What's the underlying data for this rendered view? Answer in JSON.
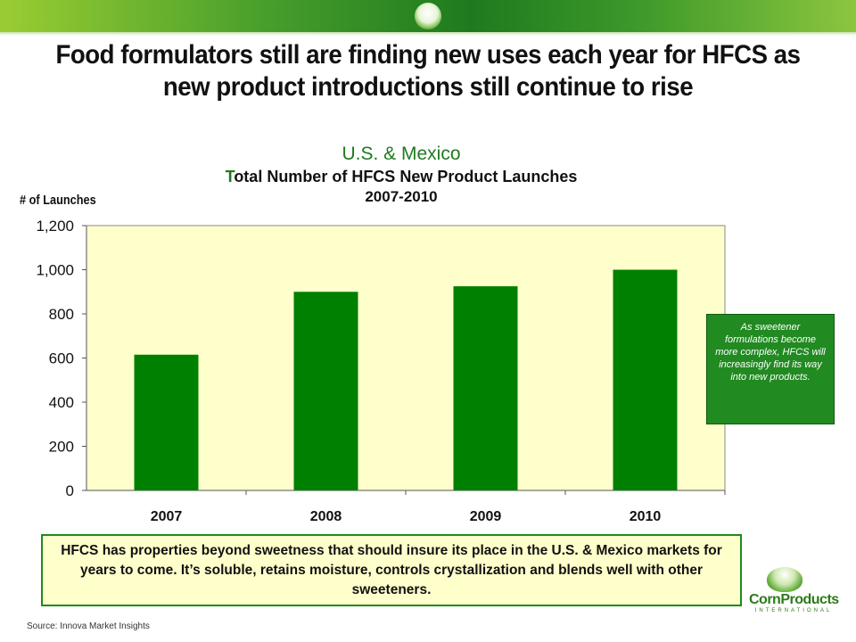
{
  "slide_title": "Food formulators still are finding new uses each year for HFCS as new product introductions still  continue to rise",
  "chart_titles": {
    "line1": "U.S. & Mexico",
    "line2_cap": "T",
    "line2_rest": "otal Number of HFCS New Product Launches",
    "line3": "2007-2010"
  },
  "callout": "As sweetener formulations become more complex, HFCS will increasingly find its way into new products.",
  "note": "HFCS has properties beyond sweetness that should insure its place in the U.S. & Mexico markets for years to come.  It’s soluble, retains moisture, controls crystallization and blends well with other sweeteners.",
  "source": "Source: Innova Market Insights",
  "logo": {
    "name": "CornProducts",
    "sub": "INTERNATIONAL"
  },
  "colors": {
    "bar": "#008000",
    "plot_bg": "#ffffcc",
    "accent": "#1f7a1f"
  },
  "chart_data": {
    "type": "bar",
    "categories": [
      "2007",
      "2008",
      "2009",
      "2010"
    ],
    "values": [
      615,
      900,
      925,
      1000
    ],
    "ylabel": "# of Launches",
    "ylim": [
      0,
      1200
    ],
    "yticks": [
      0,
      200,
      400,
      600,
      800,
      1000,
      1200
    ],
    "ytick_labels": [
      "0",
      "200",
      "400",
      "600",
      "800",
      "1,000",
      "1,200"
    ],
    "grid": false
  }
}
